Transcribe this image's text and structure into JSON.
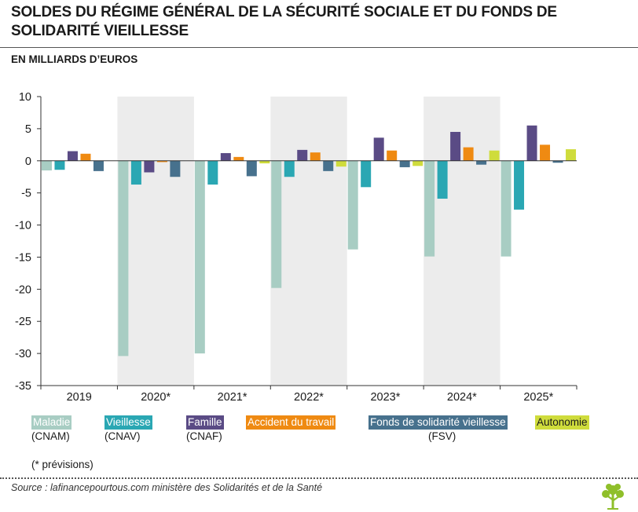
{
  "header": {
    "title": "SOLDES DU RÉGIME GÉNÉRAL DE LA SÉCURITÉ SOCIALE ET DU FONDS DE SOLIDARITÉ VIEILLESSE",
    "unit": "EN MILLIARDS D’EUROS"
  },
  "legend": [
    {
      "label": "Maladie",
      "sub": "(CNAM)",
      "color": "#a8cdc3",
      "text_color": "#ffffff"
    },
    {
      "label": "Vieillesse",
      "sub": "(CNAV)",
      "color": "#2aa7b3",
      "text_color": "#ffffff"
    },
    {
      "label": "Famille",
      "sub": "(CNAF)",
      "color": "#5a4b85",
      "text_color": "#ffffff"
    },
    {
      "label": "Accident du travail",
      "sub": "",
      "color": "#ef8a12",
      "text_color": "#ffffff"
    },
    {
      "label": "Fonds de solidarité vieillesse",
      "sub": "(FSV)",
      "color": "#47718d",
      "text_color": "#ffffff"
    },
    {
      "label": "Autonomie",
      "sub": "",
      "color": "#cfdc3c",
      "text_color": "#1a1a1a"
    }
  ],
  "footnote": "(* prévisions)",
  "source": "Source : lafinancepourtous.com ministère des Solidarités et de la Santé",
  "chart_data": {
    "type": "bar",
    "title": "SOLDES DU RÉGIME GÉNÉRAL DE LA SÉCURITÉ SOCIALE ET DU FONDS DE SOLIDARITÉ VIEILLESSE",
    "ylabel": "EN MILLIARDS D’EUROS",
    "xlabel": "",
    "ylim": [
      -35,
      10
    ],
    "yticks": [
      10,
      5,
      0,
      -5,
      -10,
      -15,
      -20,
      -25,
      -30,
      -35
    ],
    "ytick_labels": [
      "10",
      "5",
      "0",
      "-5",
      "-10",
      "-15",
      "-20",
      "-25",
      "-30",
      "-35"
    ],
    "categories": [
      "2019",
      "2020*",
      "2021*",
      "2022*",
      "2023*",
      "2024*",
      "2025*"
    ],
    "shaded_categories": [
      "2020*",
      "2022*",
      "2024*"
    ],
    "series": [
      {
        "name": "Maladie",
        "color": "#a8cdc3",
        "values": [
          -1.5,
          -30.4,
          -30.0,
          -19.8,
          -13.8,
          -14.9,
          -14.9
        ]
      },
      {
        "name": "Vieillesse",
        "color": "#2aa7b3",
        "values": [
          -1.4,
          -3.7,
          -3.7,
          -2.5,
          -4.1,
          -5.9,
          -7.6
        ]
      },
      {
        "name": "Famille",
        "color": "#5a4b85",
        "values": [
          1.5,
          -1.8,
          1.2,
          1.7,
          3.6,
          4.5,
          5.5
        ]
      },
      {
        "name": "Accident du travail",
        "color": "#ef8a12",
        "values": [
          1.1,
          -0.2,
          0.6,
          1.3,
          1.6,
          2.1,
          2.5
        ]
      },
      {
        "name": "Fonds de solidarité vieillesse",
        "color": "#47718d",
        "values": [
          -1.6,
          -2.5,
          -2.4,
          -1.6,
          -1.0,
          -0.6,
          -0.3
        ]
      },
      {
        "name": "Autonomie",
        "color": "#cfdc3c",
        "values": [
          null,
          null,
          -0.4,
          -0.9,
          -0.8,
          1.6,
          1.8
        ]
      }
    ],
    "grid": false,
    "legend_position": "bottom"
  }
}
